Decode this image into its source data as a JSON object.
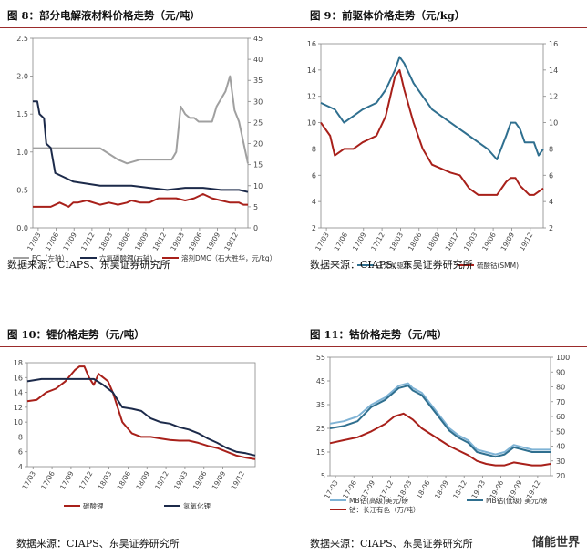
{
  "colors": {
    "red": "#a8201a",
    "navy": "#1c2a4a",
    "gray": "#a0a0a0",
    "teal": "#2f6f8f",
    "lightblue": "#7fb3d5",
    "rule": "#9b2b2b"
  },
  "source_text": "数据来源：CIAPS、东吴证券研究所",
  "watermark": "储能世界",
  "chart_data": [
    {
      "title": "图 8：部分电解液材料价格走势（元/吨）",
      "type": "line",
      "x_ticks": [
        "17/03",
        "17/06",
        "17/09",
        "17/12",
        "18/03",
        "18/06",
        "18/09",
        "18/12",
        "19/03",
        "19/06",
        "19/09",
        "19/12"
      ],
      "ylim_left": [
        0,
        2.5
      ],
      "yticks_left": [
        "0.0",
        "0.5",
        "1.0",
        "1.5",
        "2.0",
        "2.5"
      ],
      "ylim_right": [
        0,
        45
      ],
      "yticks_right": [
        "0",
        "5",
        "10",
        "15",
        "20",
        "25",
        "30",
        "35",
        "40",
        "45"
      ],
      "legend": [
        "EC（左轴）",
        "六氟磷酸锂(右轴)",
        "溶剂DMC（石大胜华，元/kg）"
      ],
      "series": [
        {
          "name": "EC（左轴）",
          "axis": "left",
          "color": "gray",
          "x": [
            0,
            2,
            6,
            10,
            16,
            24,
            30,
            38,
            42,
            48,
            50,
            54,
            60,
            62,
            64,
            66,
            68,
            70,
            72,
            74,
            78,
            80,
            82,
            86,
            88,
            90,
            92,
            96
          ],
          "values": [
            1.05,
            1.05,
            1.05,
            1.05,
            1.05,
            1.05,
            1.05,
            0.9,
            0.85,
            0.9,
            0.9,
            0.9,
            0.9,
            0.9,
            1.0,
            1.6,
            1.5,
            1.45,
            1.45,
            1.4,
            1.4,
            1.4,
            1.6,
            1.8,
            2.0,
            1.55,
            1.4,
            0.85
          ]
        },
        {
          "name": "六氟磷酸锂(右轴)",
          "axis": "right",
          "color": "navy",
          "x": [
            0,
            2,
            3,
            5,
            6,
            8,
            10,
            14,
            18,
            24,
            30,
            36,
            44,
            52,
            60,
            68,
            76,
            84,
            92,
            96
          ],
          "values": [
            30,
            30,
            27,
            26,
            20,
            19,
            13,
            12,
            11,
            10.5,
            10,
            10,
            10,
            9.5,
            9,
            9.5,
            9.5,
            9,
            9,
            8.5
          ]
        },
        {
          "name": "溶剂DMC（石大胜华，元/kg）",
          "axis": "right",
          "color": "red",
          "x": [
            0,
            4,
            8,
            12,
            16,
            18,
            20,
            24,
            30,
            34,
            38,
            42,
            44,
            48,
            52,
            56,
            60,
            64,
            68,
            72,
            76,
            80,
            84,
            88,
            92,
            94,
            96
          ],
          "values": [
            5,
            5,
            5,
            6,
            5,
            6,
            6,
            6.5,
            5.5,
            6,
            5.5,
            6,
            6.5,
            6,
            6,
            7,
            7,
            7,
            6.5,
            7,
            8,
            7,
            6.5,
            6,
            6,
            5.5,
            5.5
          ]
        }
      ]
    },
    {
      "title": "图 9：前驱体价格走势（元/kg）",
      "type": "line",
      "x_ticks": [
        "17/03",
        "17/06",
        "17/09",
        "17/12",
        "18/03",
        "18/06",
        "18/09",
        "18/12",
        "19/03",
        "19/06",
        "19/09",
        "19/12"
      ],
      "ylim_left": [
        2,
        16
      ],
      "yticks_left": [
        "2",
        "4",
        "6",
        "8",
        "10",
        "12",
        "14",
        "16"
      ],
      "ylim_right": [
        2,
        16
      ],
      "yticks_right": [
        "2",
        "4",
        "6",
        "8",
        "10",
        "12",
        "14",
        "16"
      ],
      "legend": [
        "三元前驱体",
        "硫酸钴(SMM)"
      ],
      "series": [
        {
          "name": "三元前驱体",
          "axis": "left",
          "color": "teal",
          "x": [
            0,
            6,
            10,
            14,
            18,
            24,
            28,
            32,
            34,
            36,
            40,
            44,
            48,
            52,
            56,
            60,
            64,
            68,
            72,
            76,
            80,
            82,
            84,
            86,
            88,
            92,
            94,
            96
          ],
          "values": [
            11.5,
            11,
            10,
            10.5,
            11,
            11.5,
            12.5,
            14,
            15,
            14.5,
            13,
            12,
            11,
            10.5,
            10,
            9.5,
            9,
            8.5,
            8,
            7.2,
            9,
            10,
            10,
            9.5,
            8.5,
            8.5,
            7.5,
            8
          ]
        },
        {
          "name": "硫酸钴(SMM)",
          "axis": "left",
          "color": "red",
          "x": [
            0,
            4,
            6,
            10,
            14,
            18,
            24,
            28,
            32,
            34,
            36,
            40,
            44,
            48,
            52,
            56,
            60,
            64,
            68,
            72,
            76,
            80,
            82,
            84,
            86,
            90,
            92,
            96
          ],
          "values": [
            10,
            9,
            7.5,
            8,
            8,
            8.5,
            9,
            10.5,
            13.5,
            14,
            12.5,
            10,
            8,
            6.8,
            6.5,
            6.2,
            6,
            5,
            4.5,
            4.5,
            4.5,
            5.5,
            5.8,
            5.8,
            5.2,
            4.5,
            4.5,
            5
          ]
        }
      ]
    },
    {
      "title": "图 10：锂价格走势（元/吨）",
      "type": "line",
      "x_ticks": [
        "17/03",
        "17/06",
        "17/09",
        "17/12",
        "18/03",
        "18/06",
        "18/09",
        "18/12",
        "19/03",
        "19/06",
        "19/09",
        "19/12"
      ],
      "ylim_left": [
        4,
        18
      ],
      "yticks_left": [
        "4",
        "6",
        "8",
        "10",
        "12",
        "14",
        "16",
        "18"
      ],
      "legend": [
        "碳酸锂",
        "氢氧化锂"
      ],
      "series": [
        {
          "name": "碳酸锂",
          "axis": "left",
          "color": "red",
          "x": [
            0,
            4,
            8,
            12,
            16,
            20,
            22,
            24,
            26,
            28,
            30,
            34,
            36,
            38,
            40,
            44,
            48,
            52,
            56,
            60,
            64,
            68,
            72,
            76,
            80,
            84,
            88,
            92,
            96
          ],
          "values": [
            12.8,
            13,
            14,
            14.5,
            15.5,
            17,
            17.5,
            17.5,
            16,
            15,
            16.5,
            15.5,
            14,
            12,
            10,
            8.5,
            8,
            8,
            7.8,
            7.6,
            7.5,
            7.5,
            7.2,
            6.8,
            6.5,
            6,
            5.5,
            5.2,
            5
          ]
        },
        {
          "name": "氢氧化锂",
          "axis": "left",
          "color": "navy",
          "x": [
            0,
            6,
            12,
            18,
            24,
            28,
            32,
            36,
            40,
            44,
            48,
            52,
            56,
            60,
            64,
            68,
            72,
            76,
            80,
            84,
            88,
            92,
            96
          ],
          "values": [
            15.5,
            15.8,
            15.8,
            15.8,
            15.8,
            15.8,
            15,
            14,
            12,
            11.8,
            11.5,
            10.5,
            10,
            9.8,
            9.3,
            9,
            8.5,
            7.8,
            7.2,
            6.5,
            6,
            5.8,
            5.5
          ]
        }
      ]
    },
    {
      "title": "图 11：钴价格走势（元/吨）",
      "type": "line",
      "x_ticks": [
        "17-03",
        "17-06",
        "17-09",
        "17-12",
        "18-03",
        "18-06",
        "18-09",
        "18-12",
        "19-03",
        "19-06",
        "19-09",
        "19-12"
      ],
      "ylim_left": [
        5,
        55
      ],
      "yticks_left": [
        "5",
        "15",
        "25",
        "35",
        "45",
        "55"
      ],
      "ylim_right": [
        20,
        100
      ],
      "yticks_right": [
        "20",
        "30",
        "40",
        "50",
        "60",
        "70",
        "80",
        "90",
        "100"
      ],
      "legend": [
        "MB钴(高级)美元/磅",
        "MB钴(低级) 美元/磅",
        "钴：长江有色（万/吨）"
      ],
      "series": [
        {
          "name": "MB钴(高级)美元/磅",
          "axis": "left",
          "color": "lightblue",
          "x": [
            0,
            6,
            12,
            18,
            24,
            30,
            34,
            36,
            40,
            44,
            48,
            52,
            56,
            60,
            64,
            68,
            72,
            76,
            80,
            84,
            88,
            92,
            96
          ],
          "values": [
            27,
            28,
            30,
            35,
            38,
            43,
            44,
            42,
            40,
            35,
            30,
            25,
            22,
            20,
            16,
            15,
            14,
            15,
            18,
            17,
            16,
            16,
            16
          ]
        },
        {
          "name": "MB钴(低级) 美元/磅",
          "axis": "left",
          "color": "teal",
          "x": [
            0,
            6,
            12,
            18,
            24,
            30,
            34,
            36,
            40,
            44,
            48,
            52,
            56,
            60,
            64,
            68,
            72,
            76,
            80,
            84,
            88,
            92,
            96
          ],
          "values": [
            25,
            26,
            28,
            34,
            37,
            42,
            43,
            41,
            39,
            34,
            29,
            24,
            21,
            19,
            15,
            14,
            13,
            14,
            17,
            16,
            15,
            15,
            15
          ]
        },
        {
          "name": "钴：长江有色（万/吨）",
          "axis": "right",
          "color": "red",
          "x": [
            0,
            6,
            12,
            18,
            24,
            28,
            32,
            36,
            40,
            44,
            48,
            52,
            56,
            60,
            64,
            68,
            72,
            76,
            80,
            84,
            88,
            92,
            96
          ],
          "values": [
            42,
            44,
            46,
            50,
            55,
            60,
            62,
            58,
            52,
            48,
            44,
            40,
            37,
            34,
            30,
            28,
            27,
            27,
            29,
            28,
            27,
            27,
            28
          ]
        }
      ]
    }
  ]
}
